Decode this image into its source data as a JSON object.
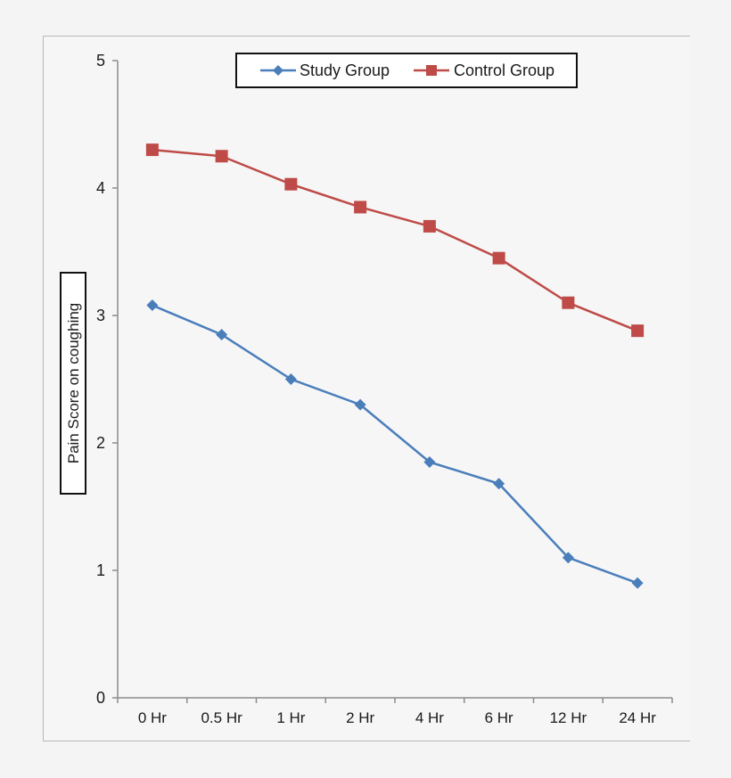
{
  "chart_data": {
    "type": "line",
    "title": "",
    "xlabel": "",
    "ylabel": "Pain Score on coughing",
    "ylim": [
      0,
      5
    ],
    "yticks": [
      0,
      1,
      2,
      3,
      4,
      5
    ],
    "grid": false,
    "legend_position": "top",
    "categories": [
      "0 Hr",
      "0.5 Hr",
      "1 Hr",
      "2 Hr",
      "4 Hr",
      "6 Hr",
      "12 Hr",
      "24 Hr"
    ],
    "series": [
      {
        "name": "Study Group",
        "color": "#4a7ebb",
        "marker": "diamond",
        "values": [
          3.08,
          2.85,
          2.5,
          2.3,
          1.85,
          1.68,
          1.1,
          0.9
        ]
      },
      {
        "name": "Control Group",
        "color": "#be4b48",
        "marker": "square",
        "values": [
          4.3,
          4.25,
          4.03,
          3.85,
          3.7,
          3.45,
          3.1,
          2.88
        ]
      }
    ]
  }
}
